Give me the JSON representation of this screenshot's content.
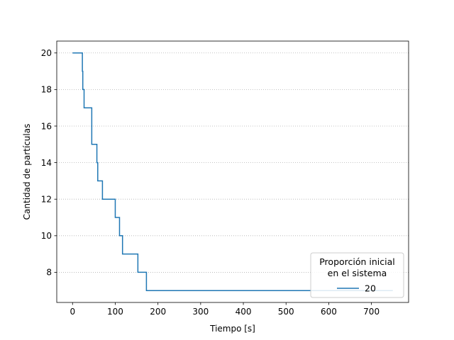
{
  "chart_data": {
    "type": "line",
    "step": true,
    "xlabel": "Tiempo [s]",
    "ylabel": "Cantidad de partículas",
    "xlim": [
      -37,
      787
    ],
    "ylim": [
      6.35,
      20.65
    ],
    "xticks": [
      0,
      100,
      200,
      300,
      400,
      500,
      600,
      700
    ],
    "yticks": [
      8,
      10,
      12,
      14,
      16,
      18,
      20
    ],
    "grid": "y-dotted",
    "legend": {
      "title_lines": [
        "Proporción inicial",
        "en el sistema"
      ],
      "placement": "lower-right"
    },
    "series": [
      {
        "name": "20",
        "color": "#1f77b4",
        "points": [
          [
            0,
            20
          ],
          [
            23,
            20
          ],
          [
            23,
            19
          ],
          [
            24,
            19
          ],
          [
            24,
            18
          ],
          [
            27,
            18
          ],
          [
            27,
            17
          ],
          [
            45,
            17
          ],
          [
            45,
            15
          ],
          [
            57,
            15
          ],
          [
            57,
            14
          ],
          [
            59,
            14
          ],
          [
            59,
            13
          ],
          [
            70,
            13
          ],
          [
            70,
            12
          ],
          [
            100,
            12
          ],
          [
            100,
            11
          ],
          [
            110,
            11
          ],
          [
            110,
            10
          ],
          [
            117,
            10
          ],
          [
            117,
            9
          ],
          [
            153,
            9
          ],
          [
            153,
            8
          ],
          [
            173,
            8
          ],
          [
            173,
            7
          ],
          [
            750,
            7
          ]
        ]
      }
    ]
  }
}
